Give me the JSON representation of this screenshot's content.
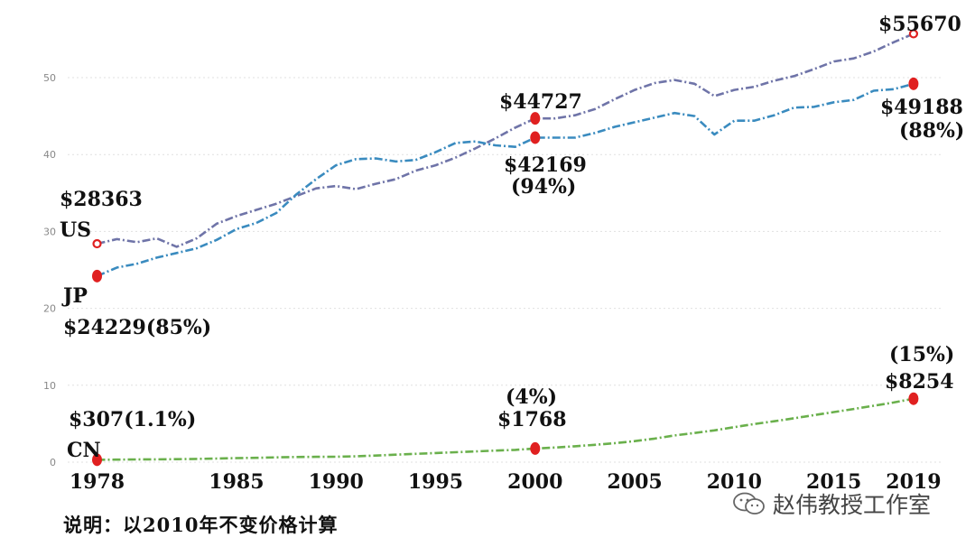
{
  "chart_data": {
    "type": "line",
    "x": [
      1978,
      1979,
      1980,
      1981,
      1982,
      1983,
      1984,
      1985,
      1986,
      1987,
      1988,
      1989,
      1990,
      1991,
      1992,
      1993,
      1994,
      1995,
      1996,
      1997,
      1998,
      1999,
      2000,
      2001,
      2002,
      2003,
      2004,
      2005,
      2006,
      2007,
      2008,
      2009,
      2010,
      2011,
      2012,
      2013,
      2014,
      2015,
      2016,
      2017,
      2018,
      2019
    ],
    "xlim": [
      1976.3,
      2020.5
    ],
    "ylim": [
      0,
      55
    ],
    "yticks": [
      0,
      10,
      20,
      30,
      40,
      50
    ],
    "ytick_labels": [
      "0",
      "10",
      "20",
      "30",
      "40",
      "50"
    ],
    "xticks": [
      1978,
      1985,
      1990,
      1995,
      2000,
      2005,
      2010,
      2015,
      2019
    ],
    "xtick_labels": [
      "1978",
      "1985",
      "1990",
      "1995",
      "2000",
      "2005",
      "2010",
      "2015",
      "2019"
    ],
    "grid": "horizontal-dotted",
    "series": [
      {
        "name": "US",
        "color": "#6f74a8",
        "values": [
          28.4,
          29.0,
          28.6,
          29.1,
          28.0,
          29.1,
          31.0,
          32.0,
          32.8,
          33.6,
          34.6,
          35.6,
          35.9,
          35.5,
          36.2,
          36.8,
          37.9,
          38.6,
          39.6,
          40.8,
          42.1,
          43.5,
          44.7,
          44.7,
          45.1,
          45.9,
          47.2,
          48.4,
          49.3,
          49.7,
          49.2,
          47.6,
          48.4,
          48.8,
          49.6,
          50.2,
          51.1,
          52.1,
          52.5,
          53.4,
          54.6,
          55.7
        ],
        "markers": [
          {
            "x": 1978,
            "y": 28.4
          },
          {
            "x": 2000,
            "y": 44.7
          },
          {
            "x": 2019,
            "y": 55.7
          }
        ]
      },
      {
        "name": "JP",
        "color": "#3a8bbf",
        "values": [
          24.2,
          25.3,
          25.8,
          26.6,
          27.2,
          27.8,
          28.9,
          30.3,
          31.1,
          32.4,
          34.8,
          36.8,
          38.6,
          39.4,
          39.5,
          39.1,
          39.3,
          40.3,
          41.5,
          41.7,
          41.2,
          41.0,
          42.2,
          42.2,
          42.2,
          42.8,
          43.6,
          44.2,
          44.8,
          45.4,
          45.0,
          42.6,
          44.4,
          44.4,
          45.1,
          46.1,
          46.2,
          46.8,
          47.1,
          48.3,
          48.5,
          49.2
        ],
        "markers": [
          {
            "x": 1978,
            "y": 24.2
          },
          {
            "x": 2000,
            "y": 42.2
          },
          {
            "x": 2019,
            "y": 49.2
          }
        ]
      },
      {
        "name": "CN",
        "color": "#6ab04c",
        "values": [
          0.31,
          0.33,
          0.35,
          0.36,
          0.39,
          0.42,
          0.47,
          0.53,
          0.56,
          0.62,
          0.67,
          0.69,
          0.7,
          0.76,
          0.86,
          0.97,
          1.08,
          1.19,
          1.29,
          1.4,
          1.5,
          1.6,
          1.77,
          1.9,
          2.06,
          2.25,
          2.47,
          2.74,
          3.06,
          3.47,
          3.79,
          4.13,
          4.55,
          4.95,
          5.32,
          5.71,
          6.11,
          6.51,
          6.91,
          7.33,
          7.76,
          8.25
        ],
        "markers": [
          {
            "x": 1978,
            "y": 0.31
          },
          {
            "x": 2000,
            "y": 1.77
          },
          {
            "x": 2019,
            "y": 8.25
          }
        ]
      }
    ],
    "annotations": [
      {
        "text": "$28363"
      },
      {
        "text": "US"
      },
      {
        "text": "JP"
      },
      {
        "text": "$24229(85%)"
      },
      {
        "text": "$307(1.1%)"
      },
      {
        "text": "CN"
      },
      {
        "text": "$44727"
      },
      {
        "text": "$42169"
      },
      {
        "text": "(94%)"
      },
      {
        "text": "(4%)"
      },
      {
        "text": "$1768"
      },
      {
        "text": "$55670"
      },
      {
        "text": "$49188"
      },
      {
        "text": "(88%)"
      },
      {
        "text": "(15%)"
      },
      {
        "text": "$8254"
      }
    ]
  },
  "footnote": "说明：以2010年不变价格计算",
  "watermark": {
    "text": "赵伟教授工作室",
    "icon": "wechat-icon"
  }
}
